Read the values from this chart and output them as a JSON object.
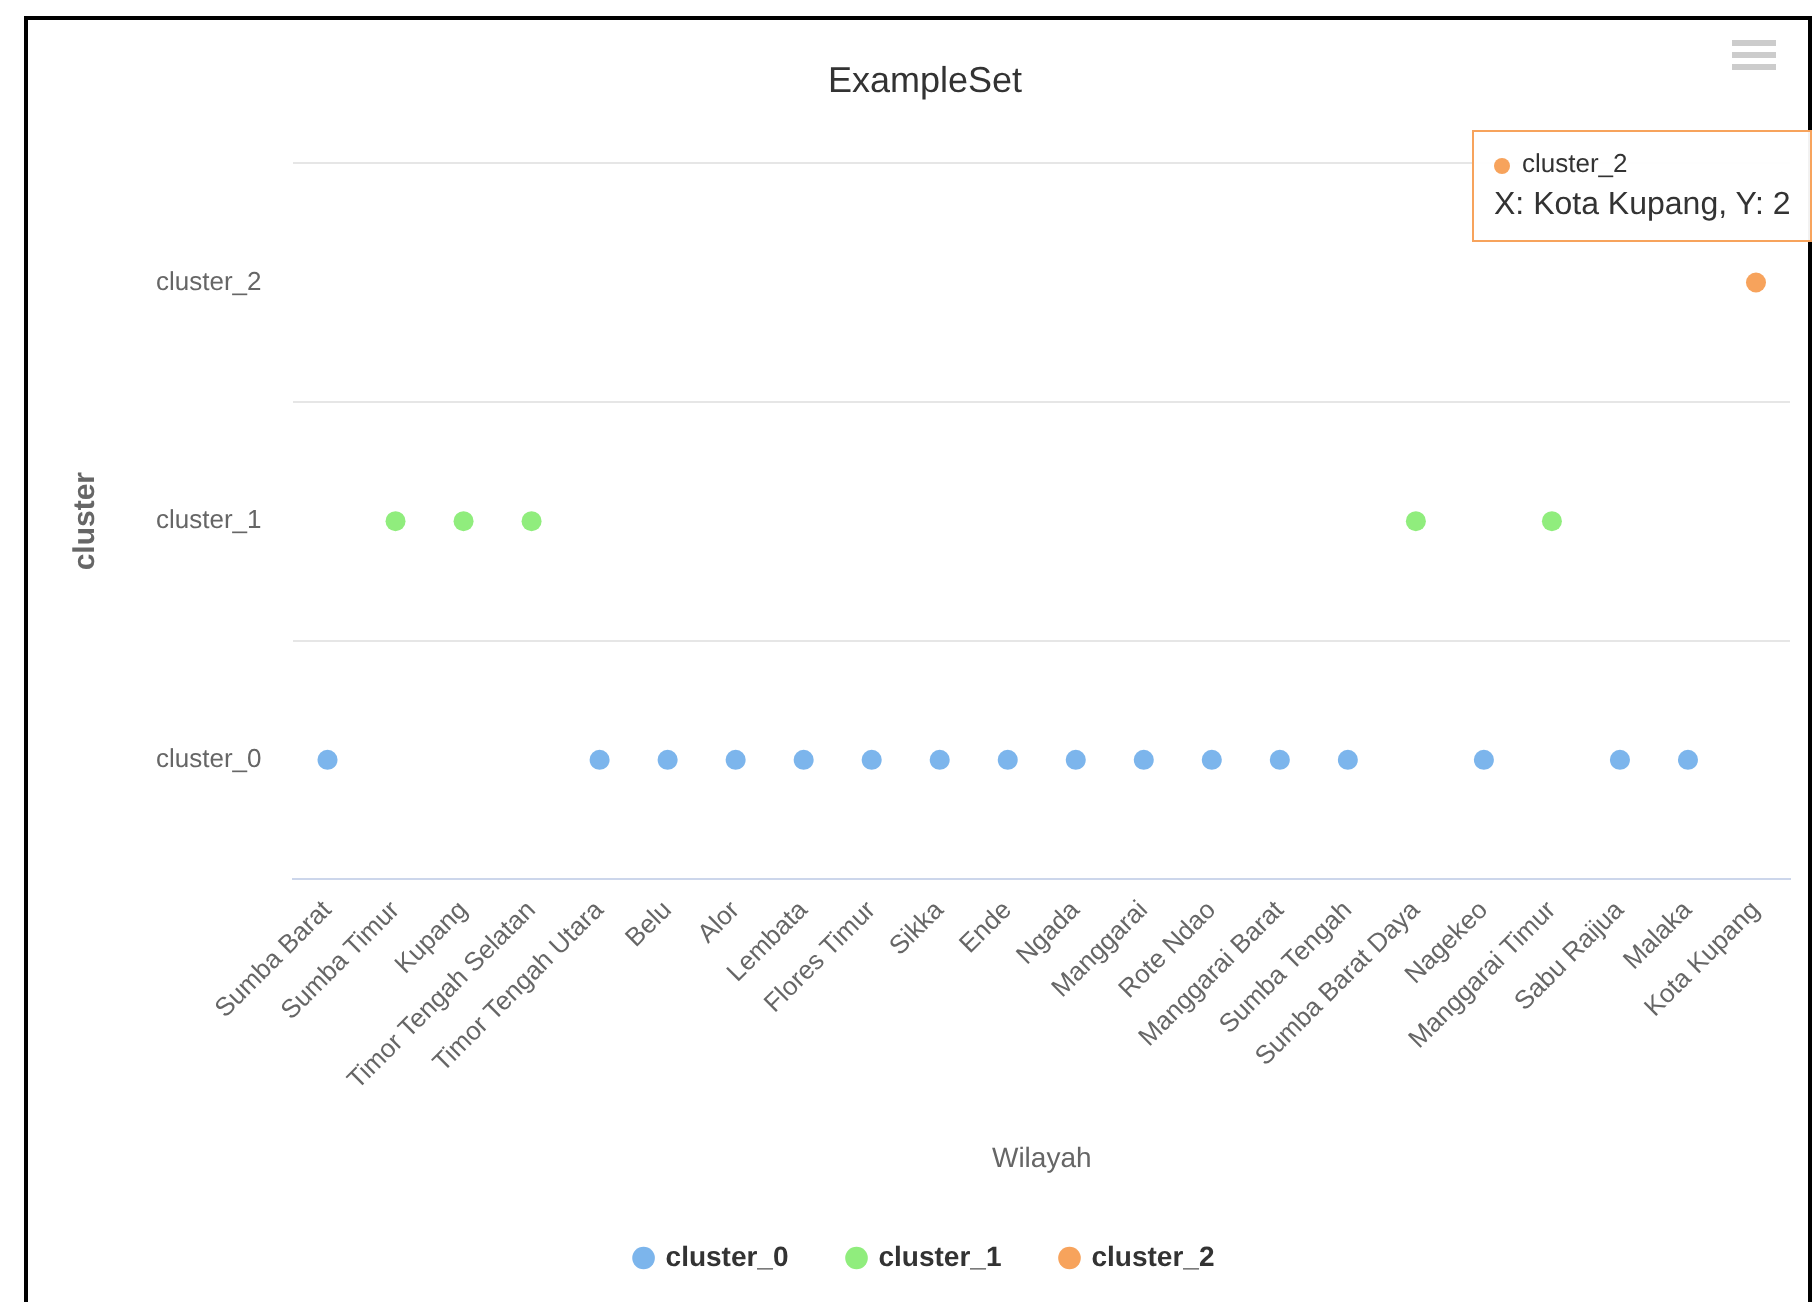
{
  "chart_data": {
    "type": "scatter",
    "title": "ExampleSet",
    "xlabel": "Wilayah",
    "ylabel": "cluster",
    "categories": [
      "Sumba Barat",
      "Sumba Timur",
      "Kupang",
      "Timor Tengah Selatan",
      "Timor Tengah Utara",
      "Belu",
      "Alor",
      "Lembata",
      "Flores Timur",
      "Sikka",
      "Ende",
      "Ngada",
      "Manggarai",
      "Rote Ndao",
      "Manggarai Barat",
      "Sumba Tengah",
      "Sumba Barat Daya",
      "Nagekeo",
      "Manggarai Timur",
      "Sabu Raijua",
      "Malaka",
      "Kota Kupang"
    ],
    "series": [
      {
        "name": "cluster_0",
        "color": "#7cb5ec",
        "values": [
          0,
          null,
          null,
          null,
          0,
          0,
          0,
          0,
          0,
          0,
          0,
          0,
          0,
          0,
          0,
          0,
          null,
          0,
          null,
          0,
          0,
          null
        ]
      },
      {
        "name": "cluster_1",
        "color": "#90ed7d",
        "values": [
          null,
          1,
          1,
          1,
          null,
          null,
          null,
          null,
          null,
          null,
          null,
          null,
          null,
          null,
          null,
          null,
          1,
          null,
          1,
          null,
          null,
          null
        ]
      },
      {
        "name": "cluster_2",
        "color": "#f7a35c",
        "values": [
          null,
          null,
          null,
          null,
          null,
          null,
          null,
          null,
          null,
          null,
          null,
          null,
          null,
          null,
          null,
          null,
          null,
          null,
          null,
          null,
          null,
          2
        ]
      }
    ],
    "ylim": [
      -0.5,
      2.5
    ],
    "yticks": [
      {
        "value": -0.5,
        "label": null
      },
      {
        "value": 0,
        "label": "cluster_0"
      },
      {
        "value": 0.5,
        "label": null
      },
      {
        "value": 1,
        "label": "cluster_1"
      },
      {
        "value": 1.5,
        "label": null
      },
      {
        "value": 2,
        "label": "cluster_2"
      },
      {
        "value": 2.5,
        "label": null
      }
    ],
    "grid": "y",
    "legend": "bottom",
    "marker": "circle",
    "annotations": [
      {
        "text": "cluster_2\nX: Kota Kupang, Y: 2",
        "x": "Kota Kupang",
        "y": 2
      }
    ]
  }
}
